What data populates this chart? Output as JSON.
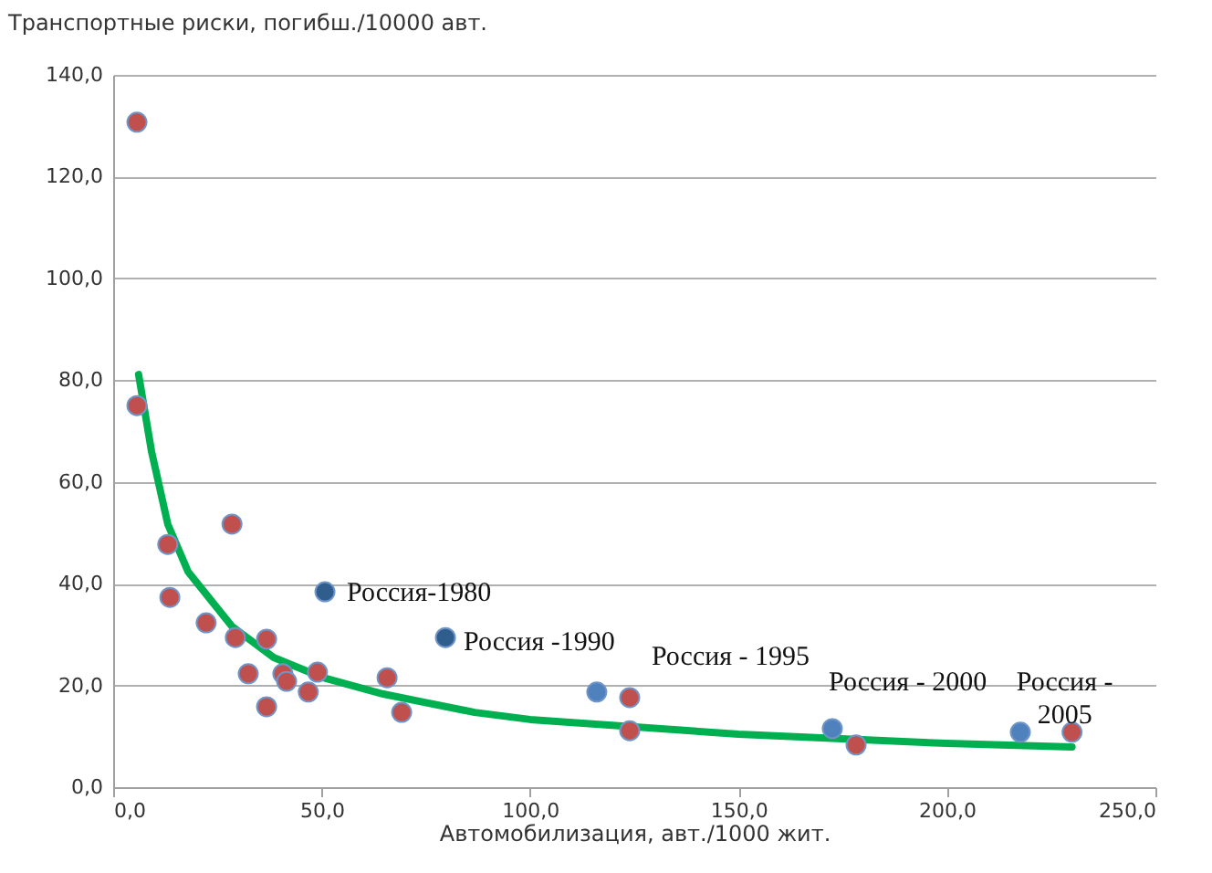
{
  "chart_data": {
    "type": "scatter",
    "xlabel": "Автомобилизация, авт./1000 жит.",
    "ylabel": "Транспортные риски, погибш./10000 авт.",
    "xlim": [
      0,
      250
    ],
    "xticks": [
      {
        "value": 0,
        "label": "0,0"
      },
      {
        "value": 50,
        "label": "50,0"
      },
      {
        "value": 100,
        "label": "100,0"
      },
      {
        "value": 150,
        "label": "150,0"
      },
      {
        "value": 200,
        "label": "200,0"
      },
      {
        "value": 250,
        "label": "250,0"
      }
    ],
    "ylim": [
      0,
      140
    ],
    "yticks": [
      {
        "value": 0,
        "label": "0,0"
      },
      {
        "value": 20,
        "label": "20,0"
      },
      {
        "value": 40,
        "label": "40,0"
      },
      {
        "value": 60,
        "label": "60,0"
      },
      {
        "value": 80,
        "label": "80,0"
      },
      {
        "value": 100,
        "label": "100,0"
      },
      {
        "value": 120,
        "label": "120,0"
      },
      {
        "value": 140,
        "label": "140,0"
      }
    ],
    "grid": "y",
    "marker": "circle",
    "series": [
      {
        "type": "line",
        "color": "#00b050",
        "line_style": "solid",
        "marker": "none",
        "x": [
          6.1,
          9.2,
          13.1,
          18,
          28.5,
          38.5,
          50.4,
          64.8,
          86.7,
          100,
          150,
          200,
          230
        ],
        "values": [
          81.1,
          66,
          51.7,
          42.3,
          31.6,
          25.5,
          21.5,
          18.3,
          14.7,
          13.3,
          10.4,
          8.6,
          7.9
        ]
      },
      {
        "color": "#c0504d",
        "x": [
          5.7,
          5.7,
          13.1,
          13.6,
          22.3,
          28.5,
          29.3,
          32.4,
          36.8,
          36.8,
          40.7,
          41.6,
          46.8,
          49.0,
          65.7,
          69.2,
          123.9,
          123.9,
          178.2,
          230
        ],
        "values": [
          130.7,
          75.0,
          47.7,
          37.3,
          32.3,
          51.7,
          29.4,
          22.3,
          29.1,
          15.8,
          22.3,
          20.8,
          18.7,
          22.6,
          21.5,
          14.7,
          17.6,
          11.1,
          8.3,
          10.8
        ]
      },
      {
        "colors": [
          "#2e5d8e",
          "#2e5d8e",
          "#4f81bd",
          "#4f81bd",
          "#4f81bd"
        ],
        "x": [
          50.8,
          79.7,
          116,
          172.5,
          217.6
        ],
        "values": [
          38.4,
          29.4,
          18.7,
          11.5,
          10.8
        ]
      }
    ],
    "annotations": [
      {
        "text": "Россия-1980",
        "x": 50.8,
        "y": 38.4
      },
      {
        "text": "Россия -1990",
        "x": 79.7,
        "y": 29.4
      },
      {
        "text": "Россия - 1995",
        "x": 116,
        "y": 18.7
      },
      {
        "text": "Россия - 2000",
        "x": 172.5,
        "y": 11.5
      },
      {
        "text": "Россия - 2005",
        "x": 230,
        "y": 10.8
      }
    ]
  }
}
